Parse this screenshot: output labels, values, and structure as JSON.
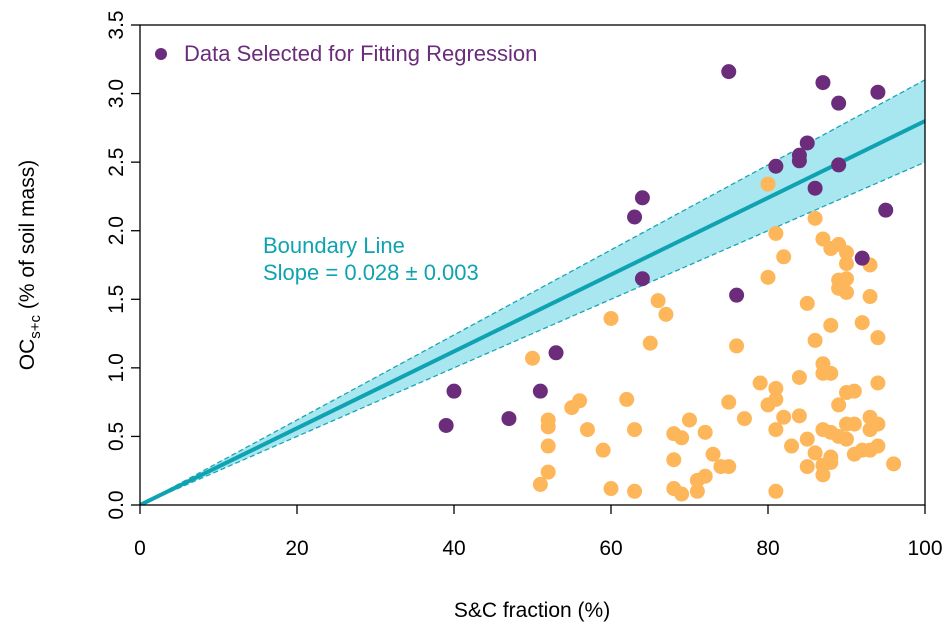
{
  "chart_data": {
    "type": "scatter",
    "xlabel": "S&C fraction (%)",
    "ylabel": {
      "prefix": "OC",
      "subscript": "s+c",
      "suffix": " (% of soil mass)"
    },
    "xlim": [
      0,
      100
    ],
    "ylim": [
      0,
      3.5
    ],
    "xticks": [
      "0",
      "20",
      "40",
      "60",
      "80",
      "100"
    ],
    "yticks": [
      "0.0",
      "0.5",
      "1.0",
      "1.5",
      "2.0",
      "2.5",
      "3.0",
      "3.5"
    ],
    "grid": false,
    "legend": {
      "position": "top-left",
      "entries": [
        "Data Selected for Fitting Regression"
      ]
    },
    "colors": {
      "selected": "#6b2d7b",
      "other": "#fdb75a",
      "line": "#0fa3b1",
      "band": "#a8e6f0",
      "band_edge": "#1aa6b4"
    },
    "boundary_line": {
      "slope": 0.028,
      "band_upper_slope": 0.031,
      "band_lower_slope": 0.025,
      "label_line1": "Boundary Line",
      "label_line2": "Slope = 0.028 ± 0.003"
    },
    "series": [
      {
        "name": "Data Selected for Fitting Regression",
        "points": [
          [
            39,
            0.58
          ],
          [
            40,
            0.83
          ],
          [
            47,
            0.63
          ],
          [
            51,
            0.83
          ],
          [
            53,
            1.11
          ],
          [
            63,
            2.1
          ],
          [
            64,
            2.24
          ],
          [
            64,
            1.65
          ],
          [
            75,
            3.16
          ],
          [
            76,
            1.53
          ],
          [
            81,
            2.47
          ],
          [
            84,
            2.51
          ],
          [
            84,
            2.55
          ],
          [
            85,
            2.64
          ],
          [
            86,
            2.31
          ],
          [
            87,
            3.08
          ],
          [
            89,
            2.93
          ],
          [
            89,
            2.48
          ],
          [
            92,
            1.8
          ],
          [
            94,
            3.01
          ],
          [
            95,
            2.15
          ]
        ]
      },
      {
        "points": [
          [
            50,
            1.07
          ],
          [
            51,
            0.15
          ],
          [
            52,
            0.62
          ],
          [
            52,
            0.57
          ],
          [
            52,
            0.43
          ],
          [
            52,
            0.24
          ],
          [
            55,
            0.71
          ],
          [
            56,
            0.76
          ],
          [
            57,
            0.55
          ],
          [
            59,
            0.4
          ],
          [
            60,
            0.12
          ],
          [
            60,
            1.36
          ],
          [
            62,
            0.77
          ],
          [
            63,
            0.55
          ],
          [
            63,
            0.1
          ],
          [
            65,
            1.18
          ],
          [
            66,
            1.49
          ],
          [
            67,
            1.39
          ],
          [
            68,
            0.52
          ],
          [
            68,
            0.33
          ],
          [
            68,
            0.12
          ],
          [
            69,
            0.49
          ],
          [
            69,
            0.08
          ],
          [
            70,
            0.62
          ],
          [
            71,
            0.18
          ],
          [
            71,
            0.1
          ],
          [
            72,
            0.53
          ],
          [
            72,
            0.21
          ],
          [
            73,
            0.37
          ],
          [
            74,
            0.28
          ],
          [
            75,
            0.75
          ],
          [
            75,
            0.28
          ],
          [
            76,
            1.16
          ],
          [
            77,
            0.63
          ],
          [
            79,
            0.89
          ],
          [
            80,
            2.34
          ],
          [
            80,
            1.66
          ],
          [
            80,
            0.73
          ],
          [
            81,
            0.85
          ],
          [
            81,
            0.77
          ],
          [
            81,
            0.55
          ],
          [
            81,
            0.1
          ],
          [
            81,
            1.98
          ],
          [
            82,
            1.81
          ],
          [
            82,
            0.64
          ],
          [
            83,
            0.43
          ],
          [
            84,
            0.93
          ],
          [
            84,
            0.65
          ],
          [
            85,
            1.47
          ],
          [
            85,
            0.48
          ],
          [
            85,
            0.28
          ],
          [
            86,
            2.09
          ],
          [
            86,
            1.2
          ],
          [
            86,
            0.38
          ],
          [
            87,
            1.94
          ],
          [
            87,
            1.03
          ],
          [
            87,
            0.96
          ],
          [
            87,
            0.55
          ],
          [
            87,
            0.29
          ],
          [
            87,
            0.22
          ],
          [
            88,
            1.87
          ],
          [
            88,
            1.31
          ],
          [
            88,
            0.96
          ],
          [
            88,
            0.53
          ],
          [
            88,
            0.35
          ],
          [
            88,
            0.31
          ],
          [
            89,
            1.9
          ],
          [
            89,
            1.64
          ],
          [
            89,
            1.58
          ],
          [
            89,
            0.73
          ],
          [
            89,
            0.5
          ],
          [
            90,
            1.84
          ],
          [
            90,
            1.76
          ],
          [
            90,
            1.65
          ],
          [
            90,
            1.55
          ],
          [
            90,
            0.82
          ],
          [
            90,
            0.59
          ],
          [
            90,
            0.48
          ],
          [
            91,
            0.83
          ],
          [
            91,
            0.59
          ],
          [
            91,
            0.37
          ],
          [
            92,
            1.33
          ],
          [
            92,
            0.4
          ],
          [
            93,
            1.75
          ],
          [
            93,
            1.52
          ],
          [
            93,
            0.64
          ],
          [
            93,
            0.55
          ],
          [
            93,
            0.4
          ],
          [
            94,
            1.22
          ],
          [
            94,
            0.89
          ],
          [
            94,
            0.59
          ],
          [
            94,
            0.43
          ],
          [
            96,
            0.3
          ]
        ]
      }
    ]
  }
}
